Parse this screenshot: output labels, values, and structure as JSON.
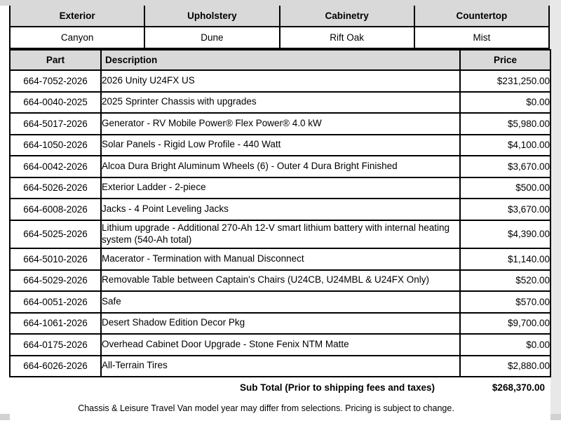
{
  "selections": {
    "columns": [
      {
        "label": "Exterior",
        "value": "Canyon"
      },
      {
        "label": "Upholstery",
        "value": "Dune"
      },
      {
        "label": "Cabinetry",
        "value": "Rift Oak"
      },
      {
        "label": "Countertop",
        "value": "Mist"
      }
    ]
  },
  "parts_table": {
    "headers": {
      "part": "Part",
      "description": "Description",
      "price": "Price"
    },
    "rows": [
      {
        "part": "664-7052-2026",
        "description": "2026 Unity U24FX US",
        "price": "$231,250.00"
      },
      {
        "part": "664-0040-2025",
        "description": "2025 Sprinter Chassis with upgrades",
        "price": "$0.00"
      },
      {
        "part": "664-5017-2026",
        "description": "Generator - RV Mobile Power® Flex Power® 4.0 kW",
        "price": "$5,980.00"
      },
      {
        "part": "664-1050-2026",
        "description": "Solar Panels - Rigid Low Profile - 440 Watt",
        "price": "$4,100.00"
      },
      {
        "part": "664-0042-2026",
        "description": "Alcoa Dura Bright Aluminum Wheels (6) - Outer 4 Dura Bright Finished",
        "price": "$3,670.00"
      },
      {
        "part": "664-5026-2026",
        "description": "Exterior Ladder - 2-piece",
        "price": "$500.00"
      },
      {
        "part": "664-6008-2026",
        "description": "Jacks - 4 Point Leveling Jacks",
        "price": "$3,670.00"
      },
      {
        "part": "664-5025-2026",
        "description": "Lithium upgrade - Additional 270-Ah 12-V smart lithium battery with internal heating system (540-Ah total)",
        "price": "$4,390.00"
      },
      {
        "part": "664-5010-2026",
        "description": "Macerator - Termination with Manual Disconnect",
        "price": "$1,140.00"
      },
      {
        "part": "664-5029-2026",
        "description": "Removable Table between Captain's Chairs (U24CB, U24MBL & U24FX Only)",
        "price": "$520.00"
      },
      {
        "part": "664-0051-2026",
        "description": "Safe",
        "price": "$570.00"
      },
      {
        "part": "664-1061-2026",
        "description": "Desert Shadow Edition Decor Pkg",
        "price": "$9,700.00"
      },
      {
        "part": "664-0175-2026",
        "description": "Overhead Cabinet Door Upgrade - Stone Fenix NTM Matte",
        "price": "$0.00"
      },
      {
        "part": "664-6026-2026",
        "description": "All-Terrain Tires",
        "price": "$2,880.00"
      }
    ],
    "subtotal": {
      "label": "Sub Total (Prior to shipping fees and taxes)",
      "value": "$268,370.00"
    },
    "footnote": "Chassis & Leisure Travel Van model year may differ from selections. Pricing is subject to change."
  },
  "colors": {
    "header_bg": "#d9d9d9",
    "border": "#000000",
    "top_strip": "#d9d9d9",
    "right_strip": "#e8e8e8",
    "bottom_bar": "#d2d2d2"
  }
}
